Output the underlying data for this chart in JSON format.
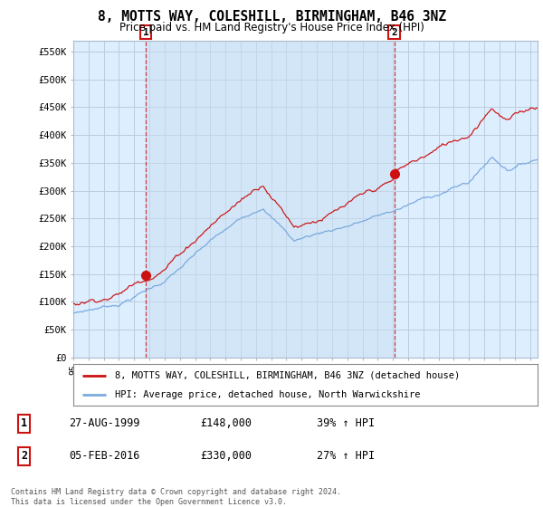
{
  "title": "8, MOTTS WAY, COLESHILL, BIRMINGHAM, B46 3NZ",
  "subtitle": "Price paid vs. HM Land Registry's House Price Index (HPI)",
  "ylabel_ticks": [
    "£0",
    "£50K",
    "£100K",
    "£150K",
    "£200K",
    "£250K",
    "£300K",
    "£350K",
    "£400K",
    "£450K",
    "£500K",
    "£550K"
  ],
  "ytick_values": [
    0,
    50000,
    100000,
    150000,
    200000,
    250000,
    300000,
    350000,
    400000,
    450000,
    500000,
    550000
  ],
  "ylim": [
    0,
    570000
  ],
  "xlim_start": 1995.0,
  "xlim_end": 2025.5,
  "sale1_x": 1999.75,
  "sale1_y": 148000,
  "sale2_x": 2016.08,
  "sale2_y": 330000,
  "red_color": "#cc1111",
  "blue_color": "#7aaadd",
  "plot_bg_color": "#ddeeff",
  "background_color": "#ffffff",
  "grid_color": "#bbccdd",
  "legend_label_red": "8, MOTTS WAY, COLESHILL, BIRMINGHAM, B46 3NZ (detached house)",
  "legend_label_blue": "HPI: Average price, detached house, North Warwickshire",
  "table_row1": [
    "1",
    "27-AUG-1999",
    "£148,000",
    "39% ↑ HPI"
  ],
  "table_row2": [
    "2",
    "05-FEB-2016",
    "£330,000",
    "27% ↑ HPI"
  ],
  "footer": "Contains HM Land Registry data © Crown copyright and database right 2024.\nThis data is licensed under the Open Government Licence v3.0."
}
